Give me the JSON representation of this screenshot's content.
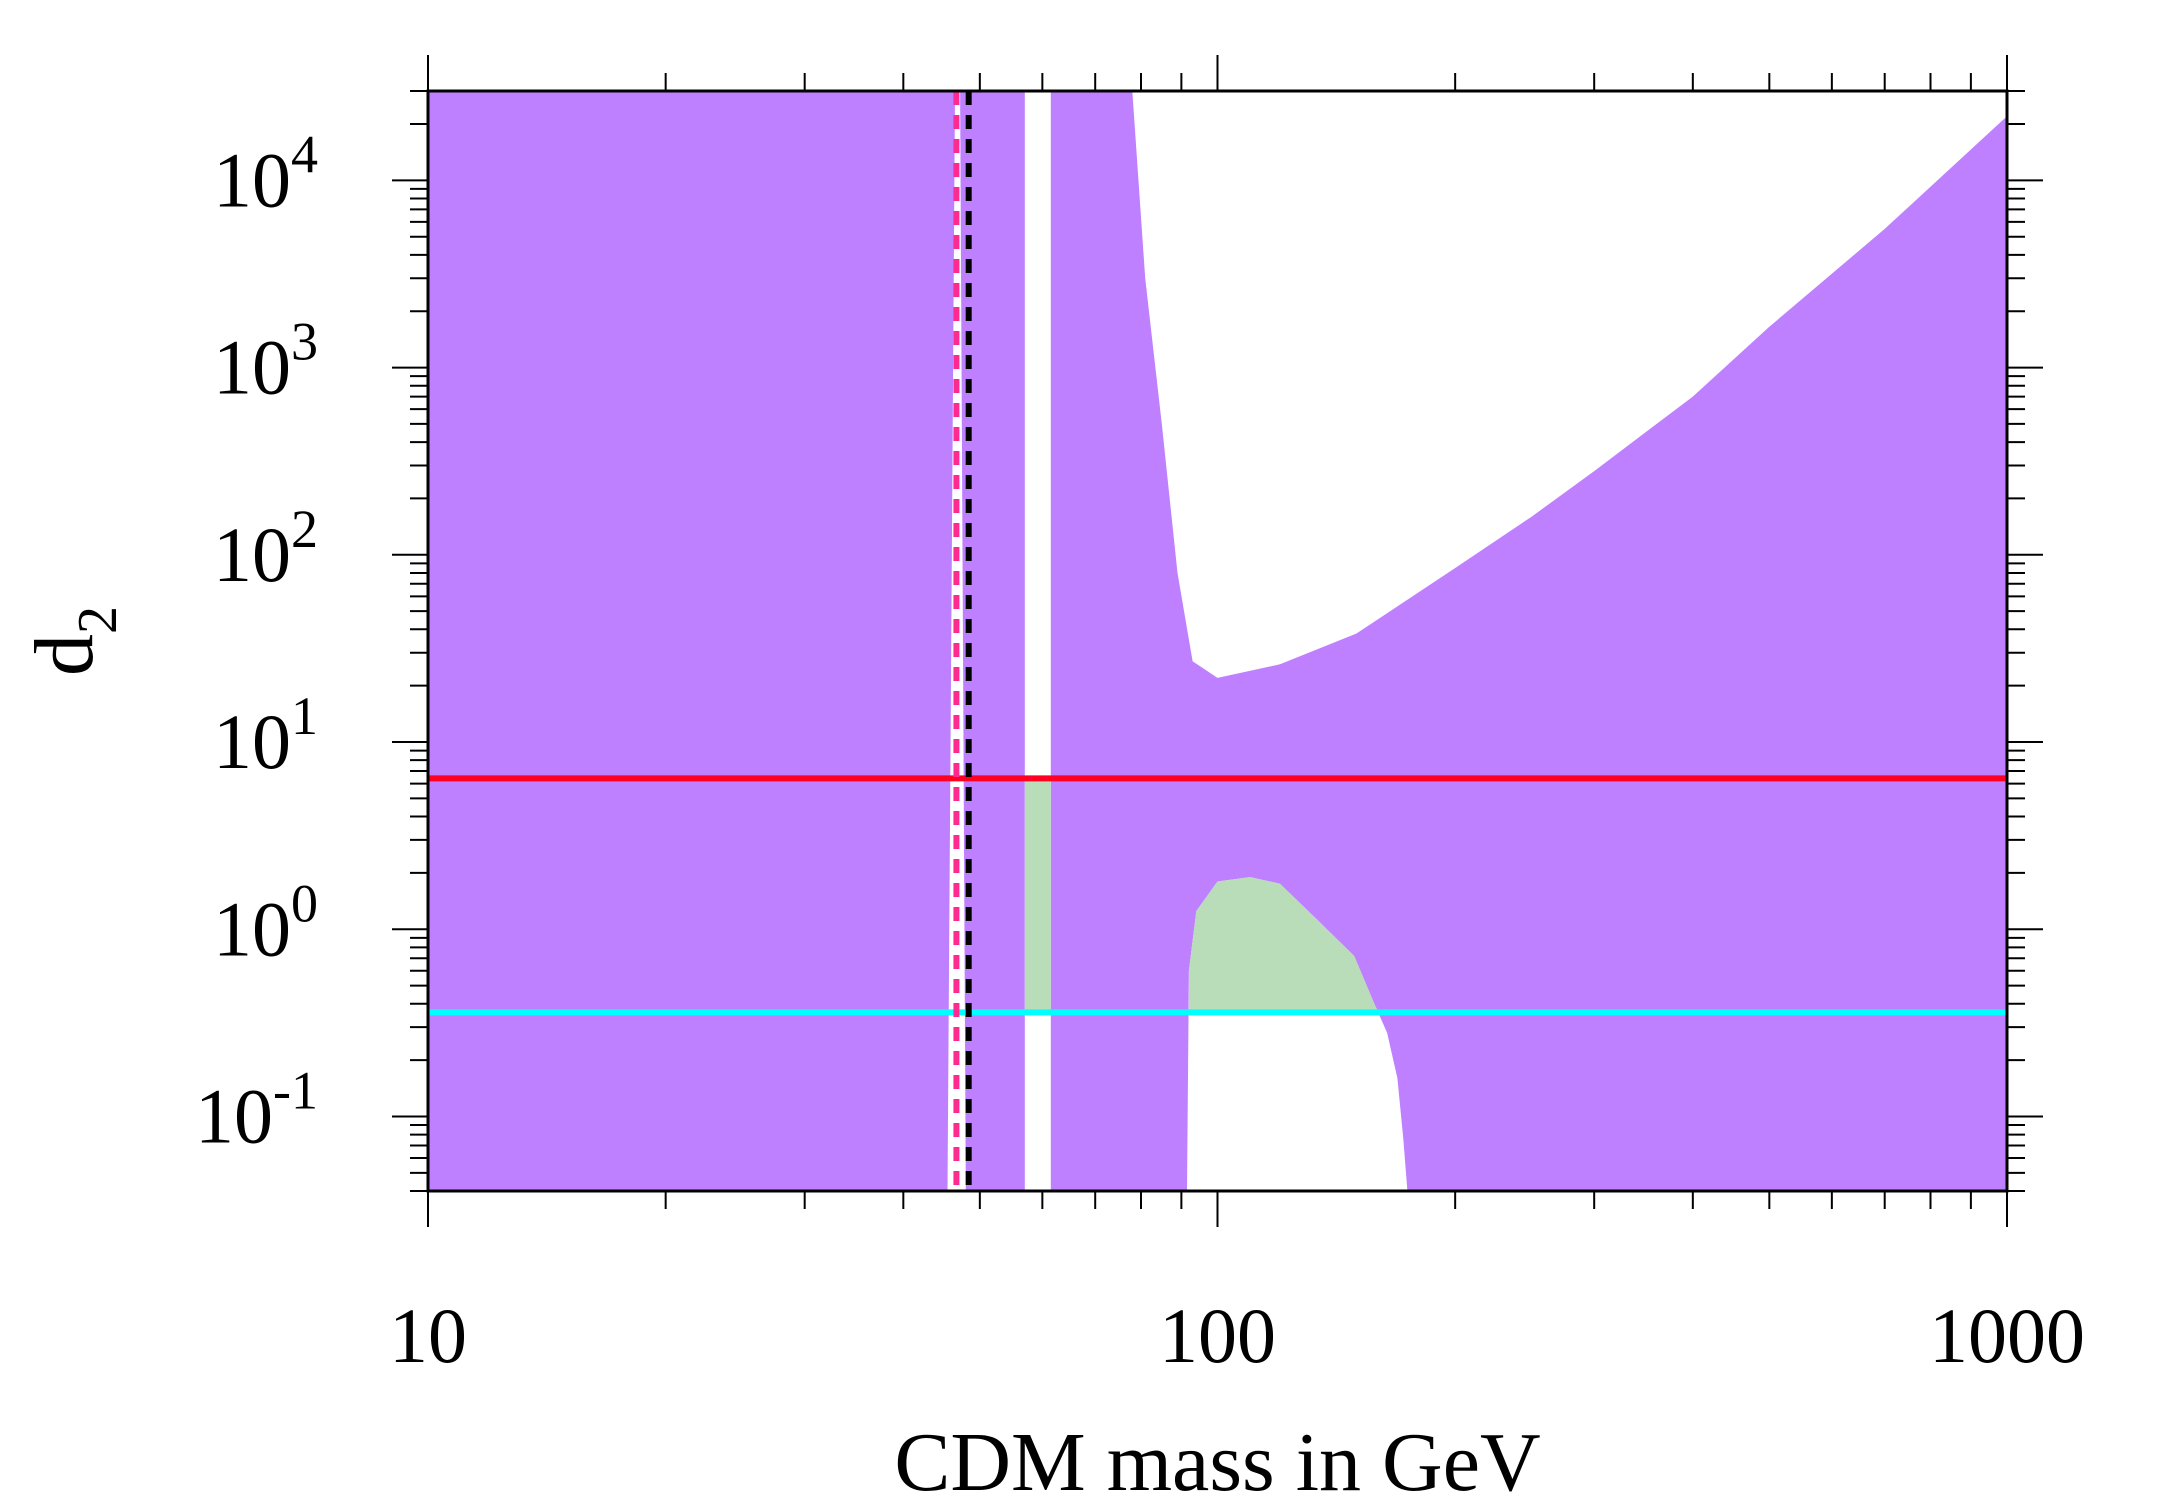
{
  "chart_data": {
    "type": "area",
    "xlabel": "CDM mass in GeV",
    "ylabel": {
      "base": "d",
      "subscript": "2"
    },
    "x_scale": "log",
    "y_scale": "log",
    "xlim": [
      10,
      1000
    ],
    "ylim": [
      0.04,
      30000
    ],
    "grid": false,
    "legend": "none",
    "x_ticks": [
      {
        "value": 10,
        "label": "10"
      },
      {
        "value": 100,
        "label": "100"
      },
      {
        "value": 1000,
        "label": "1000"
      }
    ],
    "y_ticks": [
      {
        "value": 0.1,
        "base": "10",
        "exp": "-1"
      },
      {
        "value": 1,
        "base": "10",
        "exp": "0"
      },
      {
        "value": 10,
        "base": "10",
        "exp": "1"
      },
      {
        "value": 100,
        "base": "10",
        "exp": "2"
      },
      {
        "value": 1000,
        "base": "10",
        "exp": "3"
      },
      {
        "value": 10000,
        "base": "10",
        "exp": "4"
      }
    ],
    "regions": [
      {
        "name": "excluded",
        "color": "#bf80ff",
        "polygons": [
          [
            [
              10,
              0.04
            ],
            [
              10,
              30000
            ],
            [
              46.5,
              30000
            ],
            [
              45.5,
              0.04
            ]
          ],
          [
            [
              48,
              0.04
            ],
            [
              47.2,
              30000
            ],
            [
              57,
              30000
            ],
            [
              57,
              0.04
            ]
          ],
          [
            [
              61.5,
              0.04
            ],
            [
              61.5,
              30000
            ],
            [
              78,
              30000
            ],
            [
              81,
              3000
            ],
            [
              85,
              500
            ],
            [
              89,
              80
            ],
            [
              93,
              27
            ],
            [
              100,
              22
            ],
            [
              120,
              26
            ],
            [
              150,
              38
            ],
            [
              200,
              85
            ],
            [
              250,
              160
            ],
            [
              300,
              280
            ],
            [
              400,
              700
            ],
            [
              500,
              1650
            ],
            [
              700,
              5500
            ],
            [
              1000,
              22000
            ],
            [
              1000,
              0.04
            ],
            [
              174,
              0.04
            ],
            [
              172,
              0.075
            ],
            [
              169,
              0.16
            ],
            [
              164,
              0.28
            ],
            [
              158,
              0.4
            ],
            [
              149,
              0.72
            ],
            [
              133,
              1.15
            ],
            [
              120,
              1.75
            ],
            [
              110,
              1.9
            ],
            [
              100,
              1.8
            ],
            [
              94,
              1.25
            ],
            [
              92,
              0.6
            ],
            [
              91.5,
              0.04
            ]
          ]
        ]
      },
      {
        "name": "allowed",
        "color": "#b9dcb9",
        "polygons": [
          [
            [
              57,
              0.36
            ],
            [
              57,
              6.4
            ],
            [
              61.5,
              6.4
            ],
            [
              61.5,
              0.36
            ]
          ],
          [
            [
              92,
              0.36
            ],
            [
              92,
              0.6
            ],
            [
              94,
              1.25
            ],
            [
              100,
              1.8
            ],
            [
              110,
              1.9
            ],
            [
              120,
              1.75
            ],
            [
              133,
              1.15
            ],
            [
              149,
              0.72
            ],
            [
              158,
              0.4
            ],
            [
              160,
              0.36
            ]
          ]
        ]
      }
    ],
    "lines": [
      {
        "orientation": "horizontal",
        "value": 6.4,
        "color": "#ff0022",
        "style": "solid"
      },
      {
        "orientation": "horizontal",
        "value": 0.36,
        "color": "#00ffff",
        "style": "solid"
      },
      {
        "orientation": "vertical",
        "value": 46.7,
        "color": "#ff2a90",
        "style": "dashed"
      },
      {
        "orientation": "vertical",
        "value": 48.4,
        "color": "#000000",
        "style": "dashed"
      }
    ]
  }
}
